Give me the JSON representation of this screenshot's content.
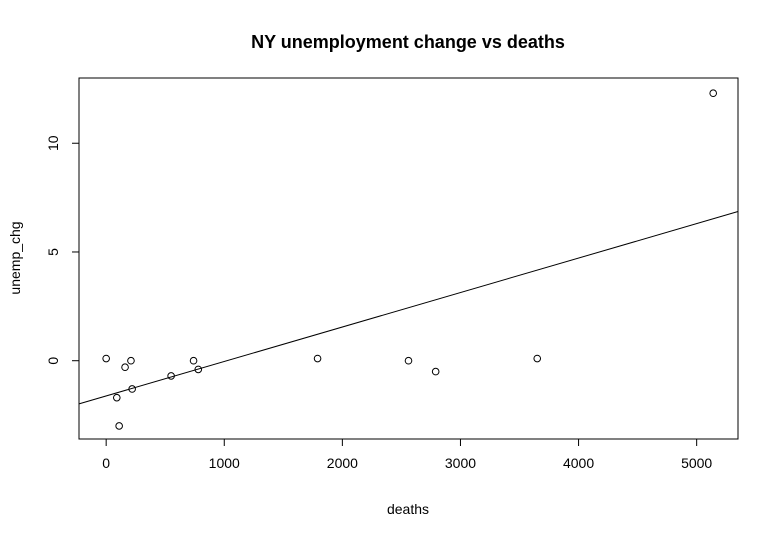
{
  "chart_data": {
    "type": "scatter",
    "title": "NY unemployment change vs deaths",
    "xlabel": "deaths",
    "ylabel": "unemp_chg",
    "xlim": [
      -230,
      5350
    ],
    "ylim": [
      -3.6,
      13.0
    ],
    "xticks": [
      0,
      1000,
      2000,
      3000,
      4000,
      5000
    ],
    "yticks": [
      0,
      5,
      10
    ],
    "xtick_labels": [
      "0",
      "1000",
      "2000",
      "3000",
      "4000",
      "5000"
    ],
    "ytick_labels": [
      "0",
      "5",
      "10"
    ],
    "points": [
      {
        "x": 0,
        "y": 0.1
      },
      {
        "x": 90,
        "y": -1.7
      },
      {
        "x": 110,
        "y": -3.0
      },
      {
        "x": 160,
        "y": -0.3
      },
      {
        "x": 210,
        "y": 0.0
      },
      {
        "x": 220,
        "y": -1.3
      },
      {
        "x": 550,
        "y": -0.7
      },
      {
        "x": 740,
        "y": 0.0
      },
      {
        "x": 780,
        "y": -0.4
      },
      {
        "x": 1790,
        "y": 0.1
      },
      {
        "x": 2560,
        "y": 0.0
      },
      {
        "x": 2790,
        "y": -0.5
      },
      {
        "x": 3650,
        "y": 0.1
      },
      {
        "x": 5140,
        "y": 12.3
      }
    ],
    "fit_line": {
      "intercept": -1.62,
      "slope": 0.001585
    }
  }
}
